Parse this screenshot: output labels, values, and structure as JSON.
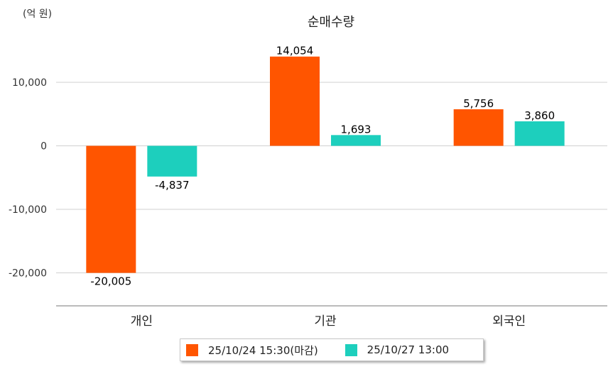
{
  "chart_data": {
    "type": "bar",
    "title": "순매수량",
    "unit_label": "(억 원)",
    "categories": [
      "개인",
      "기관",
      "외국인"
    ],
    "series": [
      {
        "name": "25/10/24 15:30(마감)",
        "color": "#ff5500",
        "values": [
          -20005,
          14054,
          5756
        ]
      },
      {
        "name": "25/10/27 13:00",
        "color": "#1dcfbd",
        "values": [
          -4837,
          1693,
          3860
        ]
      }
    ],
    "data_labels": [
      [
        "-20,005",
        "14,054",
        "5,756"
      ],
      [
        "-4,837",
        "1,693",
        "3,860"
      ]
    ],
    "yticks": [
      10000,
      0,
      -10000,
      -20000
    ],
    "ytick_labels": [
      "10,000",
      "0",
      "-10,000",
      "-20,000"
    ],
    "ylim": [
      -25000,
      18000
    ],
    "grid": true,
    "legend_position": "bottom"
  }
}
